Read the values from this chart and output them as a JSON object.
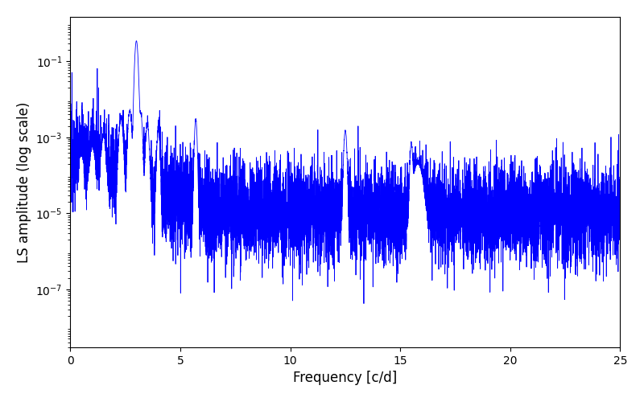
{
  "xlabel": "Frequency [c/d]",
  "ylabel": "LS amplitude (log scale)",
  "line_color": "#0000FF",
  "xlim": [
    0,
    25
  ],
  "ylim_log": [
    3e-09,
    1.5
  ],
  "yticks": [
    1e-07,
    1e-05,
    0.001,
    0.1
  ],
  "xticks": [
    0,
    5,
    10,
    15,
    20,
    25
  ],
  "figsize": [
    8.0,
    5.0
  ],
  "dpi": 100,
  "seed": 12345
}
